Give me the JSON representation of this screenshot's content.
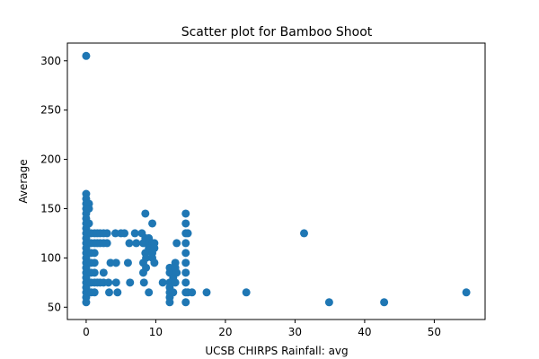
{
  "chart_data": {
    "type": "scatter",
    "title": "Scatter plot for Bamboo Shoot",
    "xlabel": "UCSB CHIRPS Rainfall: avg",
    "ylabel": "Average",
    "xlim": [
      -2.7,
      57.3
    ],
    "ylim": [
      37.5,
      318
    ],
    "xticks": [
      0,
      10,
      20,
      30,
      40,
      50
    ],
    "yticks": [
      50,
      100,
      150,
      200,
      250,
      300
    ],
    "grid": false,
    "marker_color": "#1f77b4",
    "series": [
      {
        "points": [
          [
            0,
            305
          ],
          [
            0,
            165
          ],
          [
            0,
            160
          ],
          [
            0,
            155
          ],
          [
            0,
            150
          ],
          [
            0,
            145
          ],
          [
            0,
            140
          ],
          [
            0,
            135
          ],
          [
            0,
            130
          ],
          [
            0,
            125
          ],
          [
            0,
            120
          ],
          [
            0,
            115
          ],
          [
            0,
            110
          ],
          [
            0,
            105
          ],
          [
            0,
            100
          ],
          [
            0,
            95
          ],
          [
            0,
            90
          ],
          [
            0,
            85
          ],
          [
            0,
            80
          ],
          [
            0,
            75
          ],
          [
            0,
            70
          ],
          [
            0,
            65
          ],
          [
            0,
            60
          ],
          [
            0,
            55
          ],
          [
            0.4,
            155
          ],
          [
            0.4,
            150
          ],
          [
            0.4,
            135
          ],
          [
            0.4,
            125
          ],
          [
            0.4,
            115
          ],
          [
            0.4,
            95
          ],
          [
            0.4,
            75
          ],
          [
            0.4,
            65
          ],
          [
            0.7,
            125
          ],
          [
            0.7,
            115
          ],
          [
            0.7,
            105
          ],
          [
            0.7,
            95
          ],
          [
            0.7,
            85
          ],
          [
            0.7,
            75
          ],
          [
            0.7,
            65
          ],
          [
            1.2,
            125
          ],
          [
            1.2,
            115
          ],
          [
            1.2,
            105
          ],
          [
            1.2,
            95
          ],
          [
            1.2,
            85
          ],
          [
            1.2,
            75
          ],
          [
            1.2,
            65
          ],
          [
            1.6,
            125
          ],
          [
            1.6,
            115
          ],
          [
            1.6,
            75
          ],
          [
            2.0,
            125
          ],
          [
            2.0,
            115
          ],
          [
            2.0,
            75
          ],
          [
            2.5,
            125
          ],
          [
            2.5,
            115
          ],
          [
            2.5,
            85
          ],
          [
            2.5,
            75
          ],
          [
            3.0,
            125
          ],
          [
            3.0,
            115
          ],
          [
            3.2,
            75
          ],
          [
            3.3,
            65
          ],
          [
            3.5,
            95
          ],
          [
            4.2,
            125
          ],
          [
            4.3,
            95
          ],
          [
            4.3,
            75
          ],
          [
            4.5,
            65
          ],
          [
            5.0,
            125
          ],
          [
            5.5,
            125
          ],
          [
            6.0,
            95
          ],
          [
            6.2,
            115
          ],
          [
            6.3,
            75
          ],
          [
            7.0,
            125
          ],
          [
            7.2,
            115
          ],
          [
            8.0,
            125
          ],
          [
            8.2,
            115
          ],
          [
            8.2,
            95
          ],
          [
            8.2,
            85
          ],
          [
            8.3,
            75
          ],
          [
            8.5,
            145
          ],
          [
            8.5,
            120
          ],
          [
            8.5,
            105
          ],
          [
            8.6,
            100
          ],
          [
            8.6,
            90
          ],
          [
            9.0,
            120
          ],
          [
            9.0,
            115
          ],
          [
            9.0,
            110
          ],
          [
            9.0,
            65
          ],
          [
            9.5,
            135
          ],
          [
            9.5,
            115
          ],
          [
            9.5,
            105
          ],
          [
            9.5,
            100
          ],
          [
            9.8,
            115
          ],
          [
            9.8,
            110
          ],
          [
            9.8,
            95
          ],
          [
            11.0,
            75
          ],
          [
            12.0,
            90
          ],
          [
            12.0,
            85
          ],
          [
            12.0,
            75
          ],
          [
            12.0,
            70
          ],
          [
            12.0,
            65
          ],
          [
            12.0,
            60
          ],
          [
            12.0,
            55
          ],
          [
            12.5,
            85
          ],
          [
            12.5,
            80
          ],
          [
            12.5,
            65
          ],
          [
            12.8,
            95
          ],
          [
            12.8,
            90
          ],
          [
            12.8,
            75
          ],
          [
            13.0,
            115
          ],
          [
            13.0,
            85
          ],
          [
            14.3,
            145
          ],
          [
            14.3,
            135
          ],
          [
            14.3,
            125
          ],
          [
            14.3,
            115
          ],
          [
            14.3,
            105
          ],
          [
            14.3,
            95
          ],
          [
            14.3,
            85
          ],
          [
            14.3,
            75
          ],
          [
            14.3,
            65
          ],
          [
            14.3,
            55
          ],
          [
            14.6,
            125
          ],
          [
            14.6,
            65
          ],
          [
            15.2,
            65
          ],
          [
            17.3,
            65
          ],
          [
            23.0,
            65
          ],
          [
            31.3,
            125
          ],
          [
            34.9,
            55
          ],
          [
            42.8,
            55
          ],
          [
            54.6,
            65
          ]
        ]
      }
    ]
  }
}
